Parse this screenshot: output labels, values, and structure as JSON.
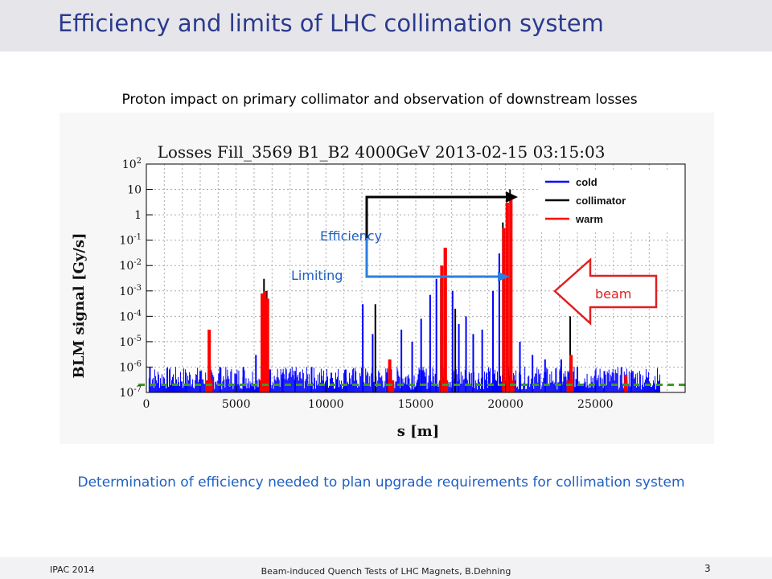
{
  "slide": {
    "title": "Efficiency and limits of LHC collimation system",
    "subtitle": "Proton impact on primary collimator and observation of downstream losses",
    "conclusion": "Determination of efficiency needed to plan upgrade requirements for collimation system"
  },
  "footer": {
    "left": "IPAC 2014",
    "center": "Beam-induced Quench Tests of LHC Magnets, B.Dehning",
    "page": "3"
  },
  "annotations": {
    "efficiency": "Efficiency",
    "limiting": "Limiting",
    "beam": "beam"
  },
  "colors": {
    "title": "#2b3a8f",
    "accent_blue": "#1f5fc4",
    "cold": "#0000ff",
    "collimator": "#000000",
    "warm": "#ff0000",
    "threshold": "#3a9a2a",
    "beam_arrow": "#e02020"
  },
  "chart_data": {
    "type": "bar",
    "title": "Losses Fill_3569 B1_B2 4000GeV 2013-02-15 03:15:03",
    "xlabel": "s [m]",
    "ylabel": "BLM signal [Gy/s]",
    "xlim": [
      0,
      30000
    ],
    "ylim": [
      1e-07,
      100
    ],
    "yscale": "log",
    "grid": true,
    "legend_position": "top-right",
    "x_ticks": [
      "0",
      "5000",
      "10000",
      "15000",
      "20000",
      "25000"
    ],
    "x_tick_values": [
      0,
      5000,
      10000,
      15000,
      20000,
      25000
    ],
    "y_ticks": [
      "10^2",
      "10",
      "1",
      "10^-1",
      "10^-2",
      "10^-3",
      "10^-4",
      "10^-5",
      "10^-6",
      "10^-7"
    ],
    "y_tick_values": [
      100,
      10,
      1,
      0.1,
      0.01,
      0.001,
      0.0001,
      1e-05,
      1e-06,
      1e-07
    ],
    "threshold_level": 2e-07,
    "series": [
      {
        "name": "cold",
        "x": [
          200,
          1300,
          2200,
          3000,
          4100,
          5400,
          6100,
          6900,
          7600,
          8300,
          9200,
          10300,
          11100,
          12050,
          12600,
          13400,
          14200,
          14800,
          15300,
          15800,
          16150,
          17050,
          17400,
          17800,
          18200,
          18700,
          19300,
          19650,
          19900,
          20300,
          20800,
          21500,
          22200,
          23100,
          24000,
          25500,
          27000
        ],
        "values": [
          1e-06,
          8e-07,
          6e-07,
          7e-07,
          1e-06,
          1e-06,
          3e-06,
          8e-07,
          6e-07,
          7e-07,
          1e-06,
          6e-07,
          8e-07,
          0.0003,
          2e-05,
          6e-07,
          3e-05,
          1e-05,
          8e-05,
          0.0007,
          0.003,
          0.001,
          5e-05,
          0.0001,
          2e-05,
          3e-05,
          0.001,
          0.03,
          0.005,
          0.0005,
          1e-05,
          3e-06,
          2e-06,
          2e-06,
          1e-06,
          7e-07,
          6e-07
        ]
      },
      {
        "name": "collimator",
        "x": [
          3500,
          6550,
          6700,
          12750,
          16400,
          16600,
          17200,
          19850,
          20050,
          20250,
          23600
        ],
        "values": [
          1e-05,
          0.003,
          0.001,
          0.0003,
          0.003,
          0.05,
          0.0002,
          0.5,
          3,
          10,
          0.0001
        ]
      },
      {
        "name": "warm",
        "x": [
          3500,
          6450,
          6600,
          6750,
          13550,
          16450,
          16650,
          19900,
          20100,
          20300,
          23650,
          26700
        ],
        "values": [
          3e-05,
          0.0008,
          0.001,
          0.0005,
          2e-06,
          0.01,
          0.05,
          0.3,
          3,
          5,
          3e-06,
          5e-07
        ]
      }
    ]
  }
}
